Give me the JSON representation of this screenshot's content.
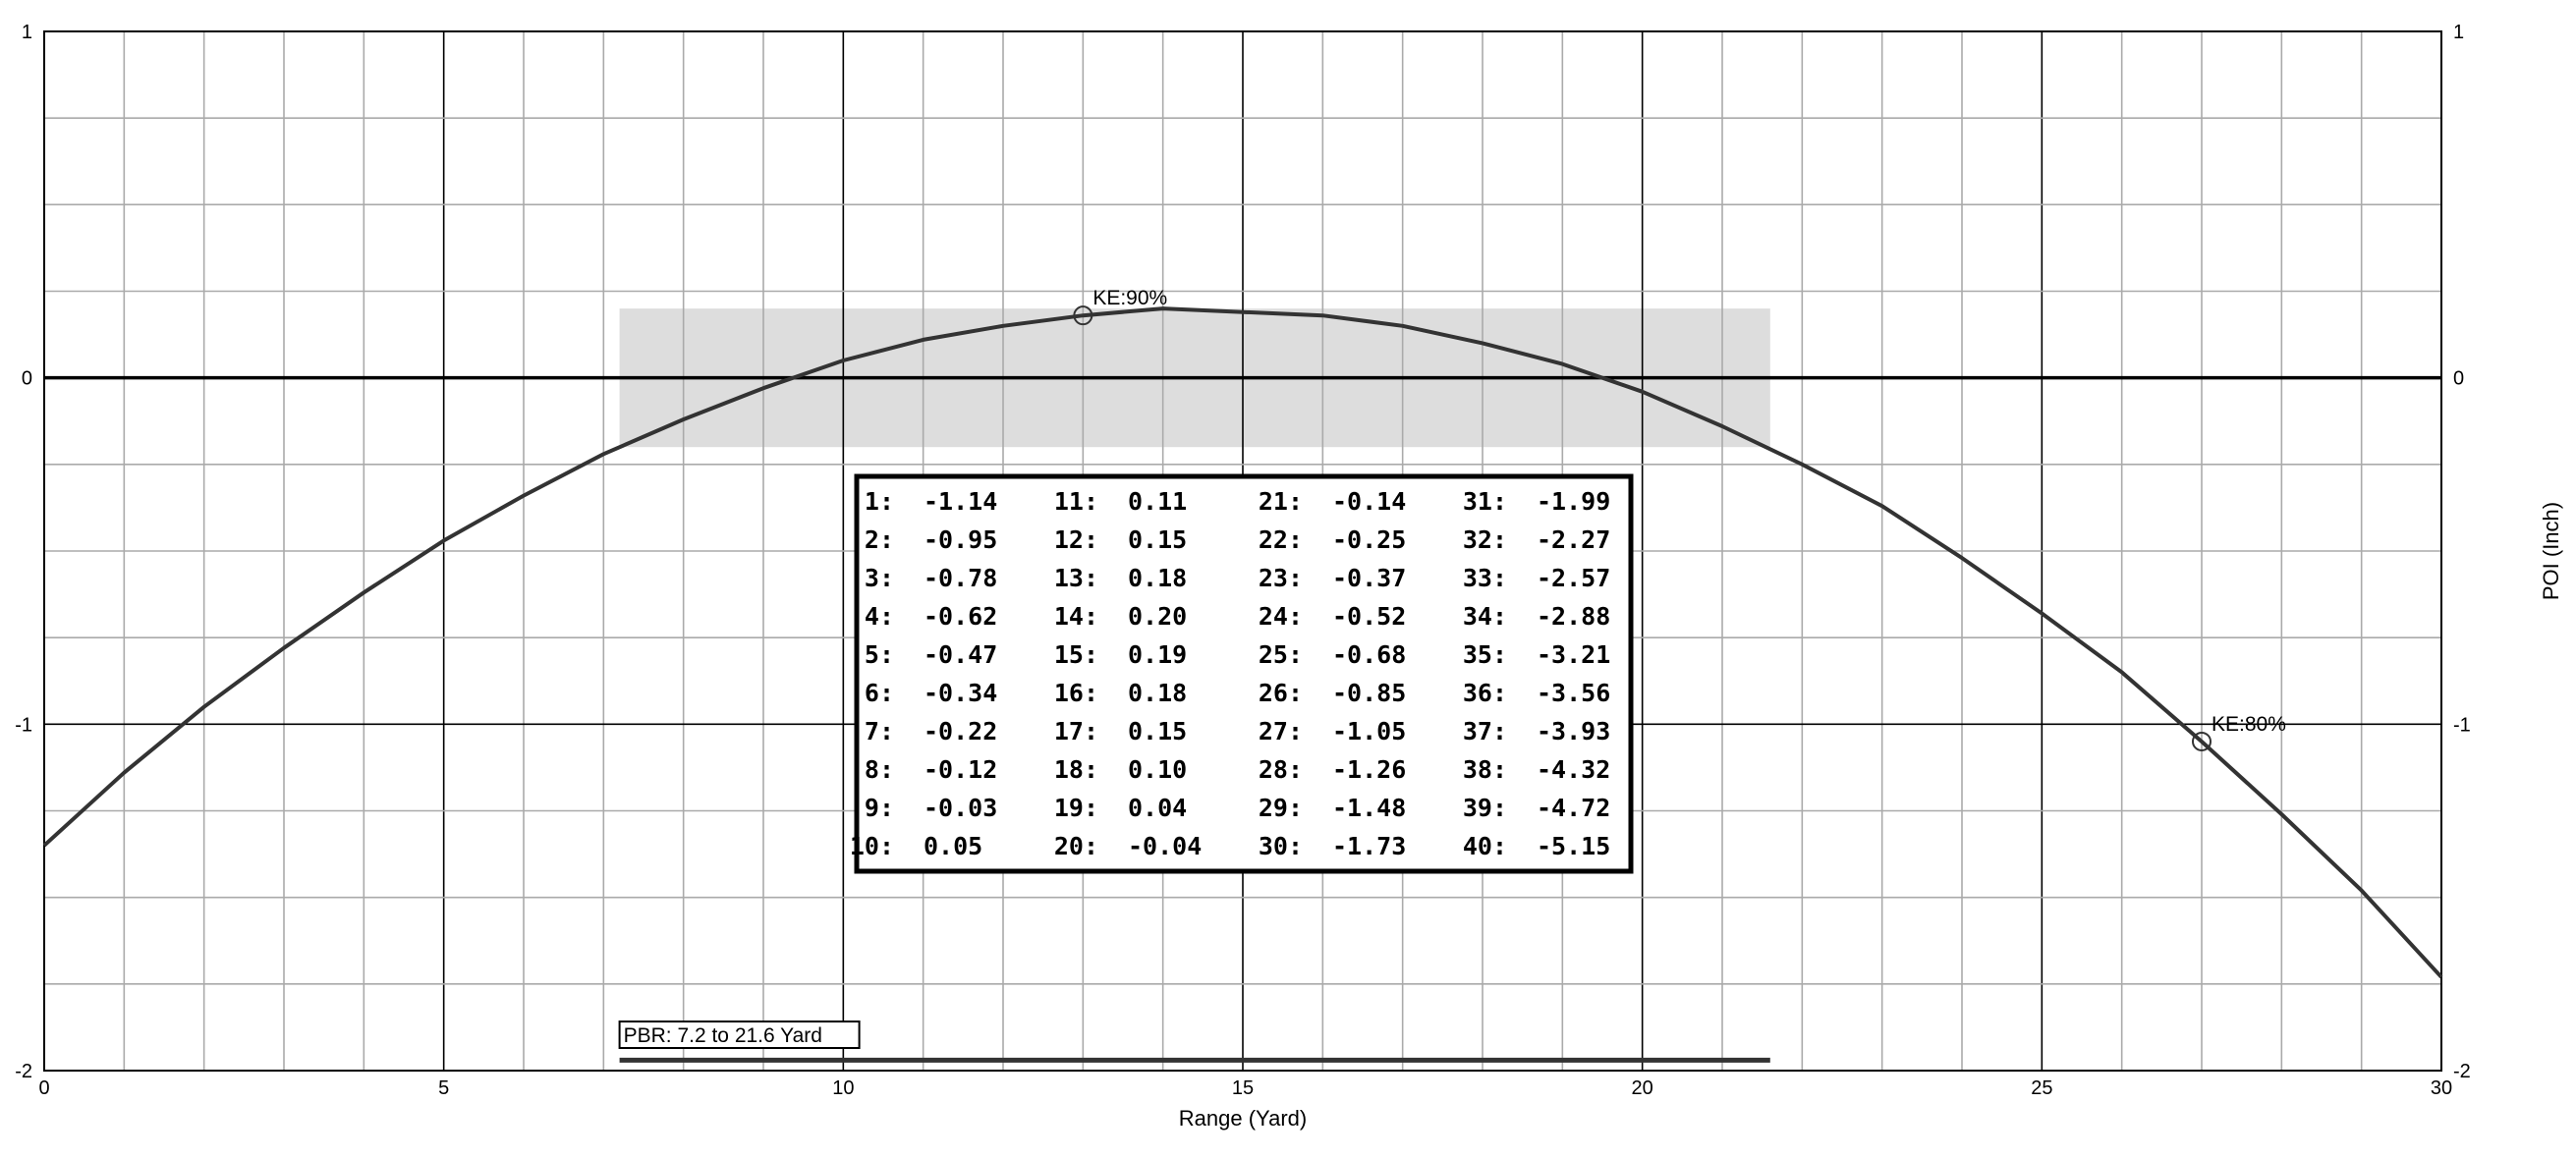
{
  "chart_data": {
    "type": "line",
    "title": "",
    "xlabel": "Range (Yard)",
    "ylabel": "POI (Inch)",
    "xlim": [
      0,
      30
    ],
    "ylim": [
      -2,
      1
    ],
    "x_ticks": [
      0,
      5,
      10,
      15,
      20,
      25,
      30
    ],
    "y_ticks": [
      -2,
      -1,
      0,
      1
    ],
    "grid": true,
    "x": [
      0,
      1,
      2,
      3,
      4,
      5,
      6,
      7,
      8,
      9,
      10,
      11,
      12,
      13,
      14,
      15,
      16,
      17,
      18,
      19,
      20,
      21,
      22,
      23,
      24,
      25,
      26,
      27,
      28,
      29,
      30
    ],
    "y": [
      -1.35,
      -1.14,
      -0.95,
      -0.78,
      -0.62,
      -0.47,
      -0.34,
      -0.22,
      -0.12,
      -0.03,
      0.05,
      0.11,
      0.15,
      0.18,
      0.2,
      0.19,
      0.18,
      0.15,
      0.1,
      0.04,
      -0.04,
      -0.14,
      -0.25,
      -0.37,
      -0.52,
      -0.68,
      -0.85,
      -1.05,
      -1.26,
      -1.48,
      -1.73
    ],
    "pbr_band": {
      "x_start": 7.2,
      "x_end": 21.6,
      "y_low": -0.2,
      "y_high": 0.2
    },
    "pbr_line_y": -1.97,
    "pbr_label": "PBR: 7.2 to 21.6 Yard",
    "annotations": [
      {
        "label": "KE:90%",
        "x": 13,
        "y": 0.18
      },
      {
        "label": "KE:80%",
        "x": 27,
        "y": -1.05
      }
    ],
    "table": [
      {
        "n": "1:",
        "v": "-1.14"
      },
      {
        "n": "2:",
        "v": "-0.95"
      },
      {
        "n": "3:",
        "v": "-0.78"
      },
      {
        "n": "4:",
        "v": "-0.62"
      },
      {
        "n": "5:",
        "v": "-0.47"
      },
      {
        "n": "6:",
        "v": "-0.34"
      },
      {
        "n": "7:",
        "v": "-0.22"
      },
      {
        "n": "8:",
        "v": "-0.12"
      },
      {
        "n": "9:",
        "v": "-0.03"
      },
      {
        "n": "10:",
        "v": "0.05"
      },
      {
        "n": "11:",
        "v": "0.11"
      },
      {
        "n": "12:",
        "v": "0.15"
      },
      {
        "n": "13:",
        "v": "0.18"
      },
      {
        "n": "14:",
        "v": "0.20"
      },
      {
        "n": "15:",
        "v": "0.19"
      },
      {
        "n": "16:",
        "v": "0.18"
      },
      {
        "n": "17:",
        "v": "0.15"
      },
      {
        "n": "18:",
        "v": "0.10"
      },
      {
        "n": "19:",
        "v": "0.04"
      },
      {
        "n": "20:",
        "v": "-0.04"
      },
      {
        "n": "21:",
        "v": "-0.14"
      },
      {
        "n": "22:",
        "v": "-0.25"
      },
      {
        "n": "23:",
        "v": "-0.37"
      },
      {
        "n": "24:",
        "v": "-0.52"
      },
      {
        "n": "25:",
        "v": "-0.68"
      },
      {
        "n": "26:",
        "v": "-0.85"
      },
      {
        "n": "27:",
        "v": "-1.05"
      },
      {
        "n": "28:",
        "v": "-1.26"
      },
      {
        "n": "29:",
        "v": "-1.48"
      },
      {
        "n": "30:",
        "v": "-1.73"
      },
      {
        "n": "31:",
        "v": "-1.99"
      },
      {
        "n": "32:",
        "v": "-2.27"
      },
      {
        "n": "33:",
        "v": "-2.57"
      },
      {
        "n": "34:",
        "v": "-2.88"
      },
      {
        "n": "35:",
        "v": "-3.21"
      },
      {
        "n": "36:",
        "v": "-3.56"
      },
      {
        "n": "37:",
        "v": "-3.93"
      },
      {
        "n": "38:",
        "v": "-4.32"
      },
      {
        "n": "39:",
        "v": "-4.72"
      },
      {
        "n": "40:",
        "v": "-5.15"
      }
    ],
    "colors": {
      "curve": "#333333",
      "band": "#dddddd",
      "major_grid": "#000000",
      "minor_grid": "#aaaaaa"
    }
  }
}
